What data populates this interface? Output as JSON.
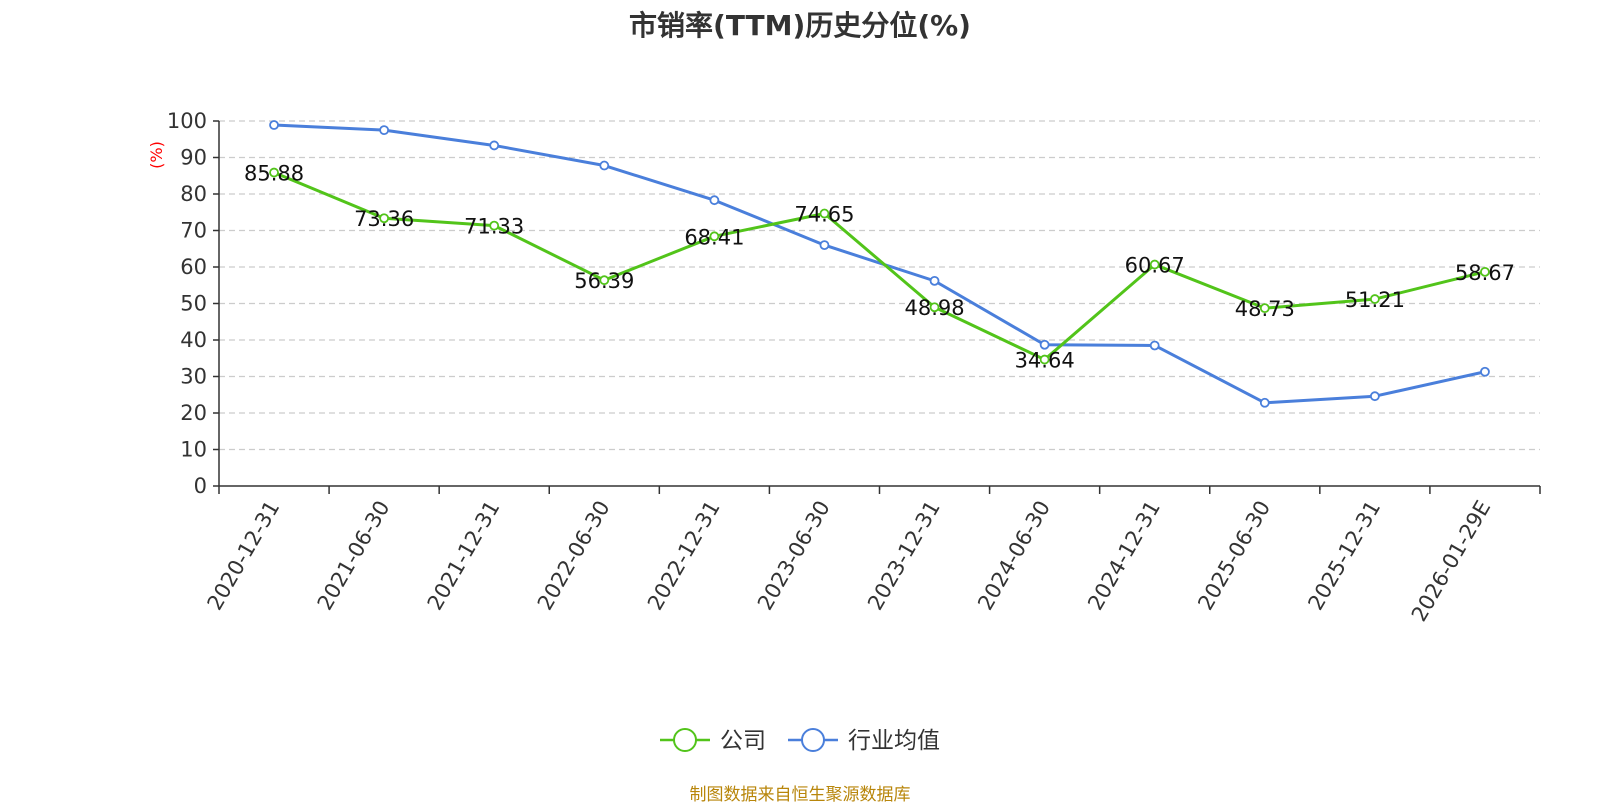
{
  "chart_data": {
    "type": "line",
    "title": "市销率(TTM)历史分位(%)",
    "ylabel": "(%)",
    "categories": [
      "2020-12-31",
      "2021-06-30",
      "2021-12-31",
      "2022-06-30",
      "2022-12-31",
      "2023-06-30",
      "2023-12-31",
      "2024-06-30",
      "2024-12-31",
      "2025-06-30",
      "2025-12-31",
      "2026-01-29E"
    ],
    "ylim": [
      0,
      100
    ],
    "yticks": [
      0,
      10,
      20,
      30,
      40,
      50,
      60,
      70,
      80,
      90,
      100
    ],
    "grid": true,
    "legend_position": "bottom",
    "series": [
      {
        "name": "公司",
        "color": "#52c41a",
        "show_labels": true,
        "values": [
          85.88,
          73.36,
          71.33,
          56.39,
          68.41,
          74.65,
          48.98,
          34.64,
          60.67,
          48.73,
          51.21,
          58.67
        ]
      },
      {
        "name": "行业均值",
        "color": "#4a7fdb",
        "show_labels": false,
        "values": [
          98.9,
          97.5,
          93.3,
          87.8,
          78.3,
          66.0,
          56.2,
          38.7,
          38.5,
          22.8,
          24.6,
          31.3
        ]
      }
    ]
  },
  "source_note": "制图数据来自恒生聚源数据库",
  "colors": {
    "ylabel": "#ff0000",
    "axis": "#333333",
    "grid": "#cccccc",
    "source": "#b8860b"
  }
}
